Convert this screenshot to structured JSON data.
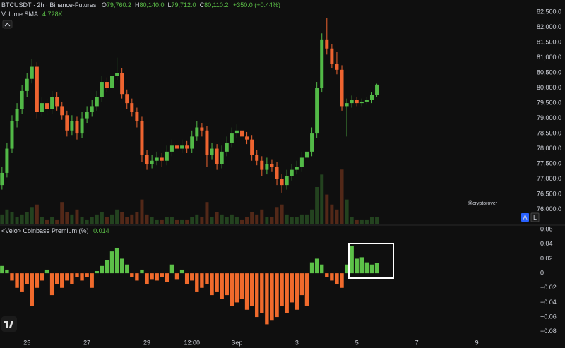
{
  "chart_data": [
    {
      "type": "candlestick",
      "title": "BTCUSDT · 2h · Binance-Futures",
      "legend": [
        {
          "key": "O",
          "value": "79,760.2"
        },
        {
          "key": "H",
          "value": "80,140.0"
        },
        {
          "key": "L",
          "value": "79,712.0"
        },
        {
          "key": "C",
          "value": "80,110.2"
        }
      ],
      "change": "+350.0 (+0.44%)",
      "volume_label": "Volume SMA",
      "volume_sma": "4.728K",
      "watermark": "@cryptorover",
      "buttons": [
        "A",
        "L"
      ],
      "up_color": "#52b947",
      "down_color": "#ee6430",
      "candles": [
        [
          76800,
          77400,
          76650,
          77200
        ],
        [
          77200,
          78200,
          77050,
          78000
        ],
        [
          78000,
          79100,
          77850,
          78900
        ],
        [
          78900,
          79500,
          78700,
          79300
        ],
        [
          79300,
          80100,
          79150,
          79900
        ],
        [
          79900,
          80500,
          79700,
          80300
        ],
        [
          80300,
          80950,
          80150,
          80700
        ],
        [
          80700,
          80850,
          79000,
          79200
        ],
        [
          79200,
          79700,
          79050,
          79500
        ],
        [
          79500,
          79650,
          79100,
          79300
        ],
        [
          79300,
          79900,
          79150,
          79700
        ],
        [
          79700,
          79850,
          79250,
          79400
        ],
        [
          79400,
          79550,
          78950,
          79100
        ],
        [
          79100,
          79250,
          78400,
          78600
        ],
        [
          78600,
          79100,
          78450,
          78900
        ],
        [
          78900,
          79050,
          78300,
          78500
        ],
        [
          78500,
          79200,
          78350,
          79000
        ],
        [
          79000,
          79400,
          78850,
          79200
        ],
        [
          79200,
          79600,
          79050,
          79400
        ],
        [
          79400,
          79900,
          79250,
          79700
        ],
        [
          79700,
          80400,
          79550,
          80200
        ],
        [
          80200,
          80350,
          79850,
          80000
        ],
        [
          80000,
          80600,
          79850,
          80400
        ],
        [
          80400,
          81000,
          80250,
          80500
        ],
        [
          80500,
          80650,
          79650,
          79800
        ],
        [
          79800,
          79950,
          79300,
          79500
        ],
        [
          79500,
          79650,
          79050,
          79200
        ],
        [
          79200,
          79350,
          78700,
          78900
        ],
        [
          78900,
          79050,
          77550,
          77800
        ],
        [
          77800,
          77950,
          77300,
          77500
        ],
        [
          77500,
          77800,
          77350,
          77600
        ],
        [
          77600,
          77900,
          77450,
          77700
        ],
        [
          77700,
          77850,
          77400,
          77600
        ],
        [
          77600,
          78100,
          77450,
          77900
        ],
        [
          77900,
          78300,
          77750,
          78100
        ],
        [
          78100,
          78250,
          77850,
          78000
        ],
        [
          78000,
          78300,
          77850,
          78100
        ],
        [
          78100,
          78250,
          77850,
          78000
        ],
        [
          78000,
          78600,
          77850,
          78400
        ],
        [
          78400,
          78900,
          78250,
          78700
        ],
        [
          78700,
          78850,
          78400,
          78600
        ],
        [
          78600,
          78750,
          77400,
          77800
        ],
        [
          77800,
          78200,
          77650,
          78000
        ],
        [
          78000,
          78150,
          77300,
          77500
        ],
        [
          77500,
          78100,
          77350,
          77900
        ],
        [
          77900,
          78400,
          77750,
          78200
        ],
        [
          78200,
          78700,
          78050,
          78500
        ],
        [
          78500,
          78800,
          78350,
          78600
        ],
        [
          78600,
          78750,
          78250,
          78400
        ],
        [
          78400,
          78550,
          78150,
          78300
        ],
        [
          78300,
          78450,
          77600,
          77800
        ],
        [
          77800,
          77950,
          77450,
          77600
        ],
        [
          77600,
          77750,
          77100,
          77300
        ],
        [
          77300,
          77700,
          77150,
          77500
        ],
        [
          77500,
          77650,
          77250,
          77400
        ],
        [
          77400,
          77550,
          76800,
          77000
        ],
        [
          77000,
          77150,
          76550,
          76800
        ],
        [
          76800,
          77300,
          76650,
          77100
        ],
        [
          77100,
          77500,
          76950,
          77300
        ],
        [
          77300,
          77600,
          77150,
          77400
        ],
        [
          77400,
          77900,
          77250,
          77700
        ],
        [
          77700,
          78100,
          77550,
          77900
        ],
        [
          77900,
          78700,
          77750,
          78500
        ],
        [
          78500,
          80200,
          78350,
          80000
        ],
        [
          80000,
          81800,
          79850,
          81600
        ],
        [
          81600,
          82300,
          81100,
          81300
        ],
        [
          81300,
          81450,
          80650,
          80800
        ],
        [
          80800,
          81200,
          80450,
          80600
        ],
        [
          80600,
          80750,
          79250,
          79400
        ],
        [
          79400,
          79650,
          78400,
          79500
        ],
        [
          79500,
          79750,
          79350,
          79600
        ],
        [
          79600,
          79700,
          79400,
          79500
        ],
        [
          79500,
          79650,
          79400,
          79550
        ],
        [
          79550,
          79700,
          79450,
          79600
        ],
        [
          79600,
          79850,
          79500,
          79760
        ],
        [
          79760,
          80140,
          79712,
          80110
        ]
      ],
      "volumes": [
        4,
        6,
        5,
        3,
        4,
        5,
        7,
        8,
        3,
        2,
        3,
        2,
        9,
        5,
        4,
        6,
        3,
        2,
        3,
        4,
        5,
        3,
        4,
        6,
        5,
        3,
        4,
        5,
        10,
        4,
        3,
        2,
        2,
        3,
        3,
        2,
        2,
        2,
        3,
        4,
        3,
        9,
        3,
        5,
        4,
        3,
        4,
        3,
        2,
        3,
        5,
        4,
        6,
        3,
        3,
        7,
        8,
        4,
        3,
        3,
        4,
        4,
        6,
        15,
        20,
        12,
        8,
        6,
        22,
        10,
        3,
        2,
        2,
        2,
        3,
        3
      ],
      "volume_lim": [
        0,
        90
      ],
      "ylim": [
        75500,
        82900
      ],
      "yticks": [
        {
          "value": 76000,
          "label": "76,000.0"
        },
        {
          "value": 76500,
          "label": "76,500.0"
        },
        {
          "value": 77000,
          "label": "77,000.0"
        },
        {
          "value": 77500,
          "label": "77,500.0"
        },
        {
          "value": 78000,
          "label": "78,000.0"
        },
        {
          "value": 78500,
          "label": "78,500.0"
        },
        {
          "value": 79000,
          "label": "79,000.0"
        },
        {
          "value": 79500,
          "label": "79,500.0"
        },
        {
          "value": 80000,
          "label": "80,000.0"
        },
        {
          "value": 80500,
          "label": "80,500.0"
        },
        {
          "value": 81000,
          "label": "81,000.0"
        },
        {
          "value": 81500,
          "label": "81,500.0"
        },
        {
          "value": 82000,
          "label": "82,000.0"
        },
        {
          "value": 82500,
          "label": "82,500.0"
        }
      ],
      "xlim": [
        -0.4,
        107
      ],
      "xticks": [
        {
          "value": 5,
          "label": "25"
        },
        {
          "value": 17,
          "label": "27"
        },
        {
          "value": 29,
          "label": "29"
        },
        {
          "value": 38,
          "label": "12:00"
        },
        {
          "value": 47,
          "label": "Sep"
        },
        {
          "value": 59,
          "label": "3"
        },
        {
          "value": 71,
          "label": "5"
        },
        {
          "value": 83,
          "label": "7"
        },
        {
          "value": 95,
          "label": "9"
        }
      ],
      "grid": false
    },
    {
      "type": "bar",
      "title": "<Velo> Coinbase Premium (%)",
      "up_color": "#5cc048",
      "down_color": "#f06a2c",
      "values": [
        0.01,
        0.005,
        -0.01,
        -0.02,
        -0.025,
        -0.015,
        -0.045,
        -0.02,
        -0.01,
        0.005,
        -0.03,
        -0.015,
        -0.02,
        -0.01,
        -0.015,
        -0.005,
        -0.01,
        -0.005,
        -0.02,
        0.003,
        0.01,
        0.018,
        0.03,
        0.035,
        0.02,
        0.012,
        -0.005,
        -0.01,
        0.005,
        -0.015,
        -0.008,
        -0.01,
        -0.005,
        -0.012,
        0.012,
        -0.008,
        0.005,
        -0.015,
        -0.01,
        -0.025,
        -0.02,
        -0.015,
        -0.03,
        -0.025,
        -0.035,
        -0.03,
        -0.045,
        -0.04,
        -0.035,
        -0.05,
        -0.045,
        -0.06,
        -0.055,
        -0.07,
        -0.065,
        -0.06,
        -0.045,
        -0.055,
        -0.04,
        -0.05,
        -0.03,
        -0.045,
        0.015,
        0.02,
        0.012,
        -0.005,
        -0.01,
        -0.015,
        -0.02,
        0.012,
        0.037,
        0.02,
        0.022,
        0.015,
        0.012,
        0.014
      ],
      "ylim": [
        -0.088,
        0.065
      ],
      "yticks": [
        0.06,
        0.04,
        0.02,
        0,
        {
          "value": -0.02,
          "label": "−0.02"
        },
        {
          "value": -0.04,
          "label": "−0.04"
        },
        {
          "value": -0.06,
          "label": "−0.06"
        },
        {
          "value": -0.08,
          "label": "−0.08"
        }
      ],
      "grid": false
    }
  ]
}
